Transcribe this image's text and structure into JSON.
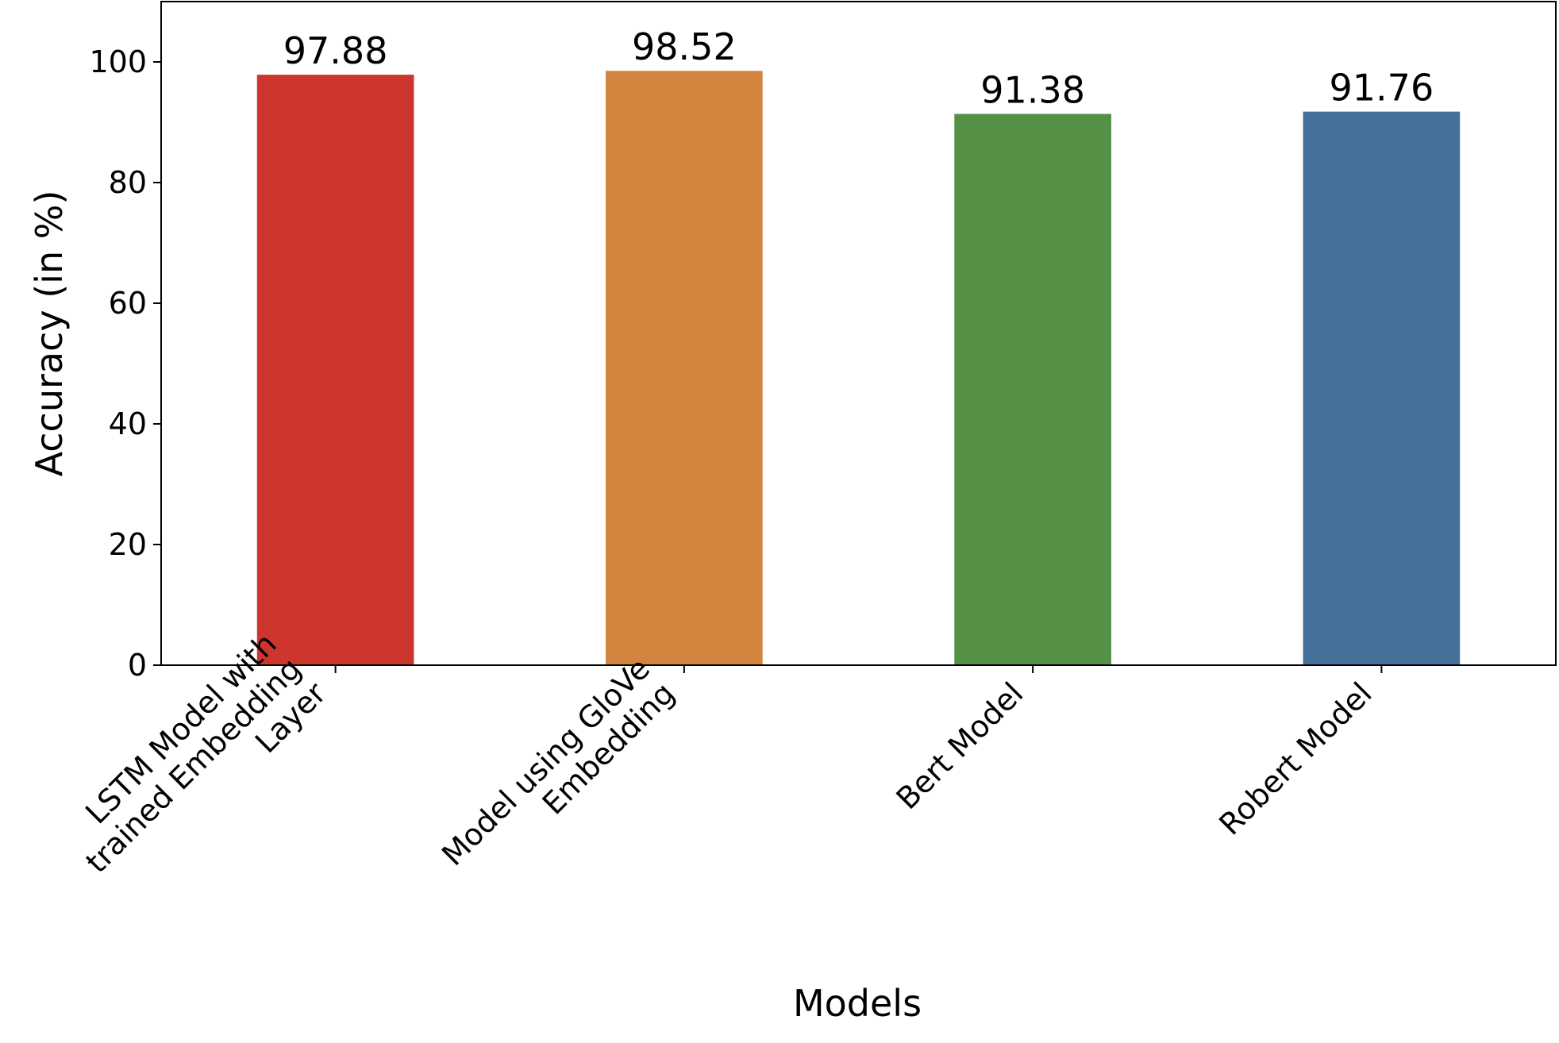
{
  "chart_data": {
    "type": "bar",
    "categories": [
      [
        "LSTM Model with",
        "trained Embedding",
        "Layer"
      ],
      [
        "Model using GloVe",
        "Embedding"
      ],
      [
        "Bert Model"
      ],
      [
        "Robert Model"
      ]
    ],
    "values": [
      97.88,
      98.52,
      91.38,
      91.76
    ],
    "value_labels": [
      "97.88",
      "98.52",
      "91.38",
      "91.76"
    ],
    "colors": [
      "#cd362e",
      "#d3853f",
      "#549146",
      "#447099"
    ],
    "xlabel": "Models",
    "ylabel": "Accuracy (in %)",
    "ylim": [
      0,
      110
    ],
    "yticks": [
      0,
      20,
      40,
      60,
      80,
      100
    ],
    "grid": false,
    "xtick_rotation": 45
  }
}
